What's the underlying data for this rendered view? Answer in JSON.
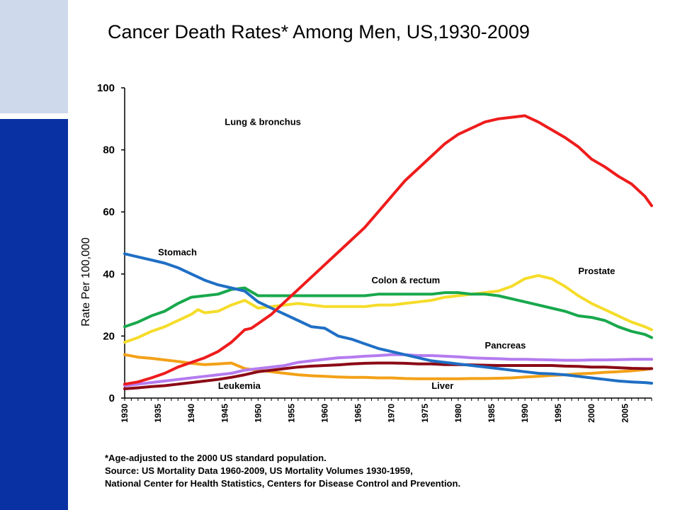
{
  "title": "Cancer Death Rates* Among Men, US,1930-2009",
  "footnote": {
    "line1": "*Age-adjusted to the 2000 US standard population.",
    "line2": "Source:  US Mortality Data 1960-2009, US Mortality Volumes 1930-1959,",
    "line3": "National Center for Health Statistics, Centers for Disease Control and Prevention."
  },
  "chart_data": {
    "type": "line",
    "title": "Cancer Death Rates* Among Men, US,1930-2009",
    "xlabel": "",
    "ylabel": "Rate Per 100,000",
    "xlim": [
      1930,
      2009
    ],
    "ylim": [
      0,
      100
    ],
    "yticks": [
      0,
      20,
      40,
      60,
      80,
      100
    ],
    "xticks": [
      1930,
      1935,
      1940,
      1945,
      1950,
      1955,
      1960,
      1965,
      1970,
      1975,
      1980,
      1985,
      1990,
      1995,
      2000,
      2005
    ],
    "grid": false,
    "legend": "labels placed next to lines",
    "series": [
      {
        "name": "Lung & bronchus",
        "color": "#ee1c1c",
        "label_at": [
          1945,
          88
        ],
        "points": [
          [
            1930,
            4.5
          ],
          [
            1932,
            5.2
          ],
          [
            1934,
            6.5
          ],
          [
            1936,
            8
          ],
          [
            1938,
            10
          ],
          [
            1940,
            11.5
          ],
          [
            1942,
            13
          ],
          [
            1944,
            15
          ],
          [
            1946,
            18
          ],
          [
            1948,
            22
          ],
          [
            1949,
            22.5
          ],
          [
            1950,
            24
          ],
          [
            1952,
            27
          ],
          [
            1954,
            31
          ],
          [
            1956,
            35
          ],
          [
            1958,
            39
          ],
          [
            1960,
            43
          ],
          [
            1962,
            47
          ],
          [
            1964,
            51
          ],
          [
            1966,
            55
          ],
          [
            1968,
            60
          ],
          [
            1970,
            65
          ],
          [
            1972,
            70
          ],
          [
            1974,
            74
          ],
          [
            1976,
            78
          ],
          [
            1978,
            82
          ],
          [
            1980,
            85
          ],
          [
            1982,
            87
          ],
          [
            1984,
            89
          ],
          [
            1986,
            90
          ],
          [
            1988,
            90.5
          ],
          [
            1990,
            91
          ],
          [
            1992,
            89
          ],
          [
            1994,
            86.5
          ],
          [
            1996,
            84
          ],
          [
            1998,
            81
          ],
          [
            2000,
            77
          ],
          [
            2002,
            74.5
          ],
          [
            2004,
            71.5
          ],
          [
            2006,
            69
          ],
          [
            2008,
            65
          ],
          [
            2009,
            62
          ]
        ]
      },
      {
        "name": "Stomach",
        "color": "#1f6fc5",
        "label_at": [
          1935,
          46
        ],
        "points": [
          [
            1930,
            46.5
          ],
          [
            1932,
            45.5
          ],
          [
            1934,
            44.5
          ],
          [
            1936,
            43.5
          ],
          [
            1938,
            42
          ],
          [
            1940,
            40
          ],
          [
            1942,
            38
          ],
          [
            1944,
            36.5
          ],
          [
            1946,
            35.5
          ],
          [
            1948,
            34.5
          ],
          [
            1950,
            31
          ],
          [
            1952,
            29
          ],
          [
            1954,
            27
          ],
          [
            1956,
            25
          ],
          [
            1958,
            23
          ],
          [
            1960,
            22.5
          ],
          [
            1962,
            20
          ],
          [
            1964,
            19
          ],
          [
            1966,
            17.5
          ],
          [
            1968,
            16
          ],
          [
            1970,
            15
          ],
          [
            1972,
            14
          ],
          [
            1974,
            13
          ],
          [
            1976,
            12
          ],
          [
            1978,
            11.5
          ],
          [
            1980,
            11
          ],
          [
            1982,
            10.5
          ],
          [
            1984,
            10
          ],
          [
            1986,
            9.5
          ],
          [
            1988,
            9
          ],
          [
            1990,
            8.5
          ],
          [
            1992,
            8
          ],
          [
            1994,
            7.8
          ],
          [
            1996,
            7.5
          ],
          [
            1998,
            7
          ],
          [
            2000,
            6.5
          ],
          [
            2002,
            6
          ],
          [
            2004,
            5.5
          ],
          [
            2006,
            5.2
          ],
          [
            2008,
            5
          ],
          [
            2009,
            4.8
          ]
        ]
      },
      {
        "name": "Colon & rectum",
        "color": "#18a84c",
        "label_at": [
          1967,
          37
        ],
        "points": [
          [
            1930,
            23
          ],
          [
            1932,
            24.5
          ],
          [
            1934,
            26.5
          ],
          [
            1936,
            28
          ],
          [
            1938,
            30.5
          ],
          [
            1940,
            32.5
          ],
          [
            1942,
            33
          ],
          [
            1944,
            33.5
          ],
          [
            1946,
            35
          ],
          [
            1948,
            35.5
          ],
          [
            1950,
            33
          ],
          [
            1952,
            33
          ],
          [
            1954,
            33
          ],
          [
            1956,
            33
          ],
          [
            1958,
            33
          ],
          [
            1960,
            33
          ],
          [
            1962,
            33
          ],
          [
            1964,
            33
          ],
          [
            1966,
            33
          ],
          [
            1968,
            33.5
          ],
          [
            1970,
            33.5
          ],
          [
            1972,
            33.5
          ],
          [
            1974,
            33.5
          ],
          [
            1976,
            33.5
          ],
          [
            1978,
            34
          ],
          [
            1980,
            34
          ],
          [
            1982,
            33.5
          ],
          [
            1984,
            33.5
          ],
          [
            1986,
            33
          ],
          [
            1988,
            32
          ],
          [
            1990,
            31
          ],
          [
            1992,
            30
          ],
          [
            1994,
            29
          ],
          [
            1996,
            28
          ],
          [
            1998,
            26.5
          ],
          [
            2000,
            26
          ],
          [
            2002,
            25
          ],
          [
            2004,
            23
          ],
          [
            2006,
            21.5
          ],
          [
            2008,
            20.5
          ],
          [
            2009,
            19.5
          ]
        ]
      },
      {
        "name": "Prostate",
        "color": "#f5dc2a",
        "label_at": [
          1998,
          40
        ],
        "points": [
          [
            1930,
            18
          ],
          [
            1932,
            19.5
          ],
          [
            1934,
            21.5
          ],
          [
            1936,
            23
          ],
          [
            1938,
            25
          ],
          [
            1940,
            27
          ],
          [
            1941,
            28.5
          ],
          [
            1942,
            27.5
          ],
          [
            1944,
            28
          ],
          [
            1946,
            30
          ],
          [
            1948,
            31.5
          ],
          [
            1950,
            29
          ],
          [
            1952,
            29.5
          ],
          [
            1954,
            30
          ],
          [
            1956,
            30.5
          ],
          [
            1958,
            30
          ],
          [
            1960,
            29.5
          ],
          [
            1962,
            29.5
          ],
          [
            1964,
            29.5
          ],
          [
            1966,
            29.5
          ],
          [
            1968,
            30
          ],
          [
            1970,
            30
          ],
          [
            1972,
            30.5
          ],
          [
            1974,
            31
          ],
          [
            1976,
            31.5
          ],
          [
            1978,
            32.5
          ],
          [
            1980,
            33
          ],
          [
            1982,
            33.5
          ],
          [
            1984,
            34
          ],
          [
            1986,
            34.5
          ],
          [
            1988,
            36
          ],
          [
            1990,
            38.5
          ],
          [
            1992,
            39.5
          ],
          [
            1994,
            38.5
          ],
          [
            1996,
            36
          ],
          [
            1998,
            33
          ],
          [
            2000,
            30.5
          ],
          [
            2002,
            28.5
          ],
          [
            2004,
            26.5
          ],
          [
            2006,
            24.5
          ],
          [
            2008,
            23
          ],
          [
            2009,
            22
          ]
        ]
      },
      {
        "name": "Pancreas",
        "color": "#b57bf0",
        "label_at": [
          1984,
          16
        ],
        "points": [
          [
            1930,
            4
          ],
          [
            1932,
            4.5
          ],
          [
            1934,
            5
          ],
          [
            1936,
            5.5
          ],
          [
            1938,
            6
          ],
          [
            1940,
            6.5
          ],
          [
            1942,
            7
          ],
          [
            1944,
            7.5
          ],
          [
            1946,
            8
          ],
          [
            1948,
            9
          ],
          [
            1950,
            9.5
          ],
          [
            1952,
            10
          ],
          [
            1954,
            10.5
          ],
          [
            1956,
            11.5
          ],
          [
            1958,
            12
          ],
          [
            1960,
            12.5
          ],
          [
            1962,
            13
          ],
          [
            1964,
            13.2
          ],
          [
            1966,
            13.5
          ],
          [
            1968,
            13.7
          ],
          [
            1970,
            14
          ],
          [
            1972,
            14
          ],
          [
            1974,
            13.7
          ],
          [
            1976,
            13.7
          ],
          [
            1978,
            13.5
          ],
          [
            1980,
            13.3
          ],
          [
            1982,
            13
          ],
          [
            1984,
            12.8
          ],
          [
            1986,
            12.7
          ],
          [
            1988,
            12.5
          ],
          [
            1990,
            12.5
          ],
          [
            1992,
            12.4
          ],
          [
            1994,
            12.3
          ],
          [
            1996,
            12.2
          ],
          [
            1998,
            12.2
          ],
          [
            2000,
            12.3
          ],
          [
            2002,
            12.3
          ],
          [
            2004,
            12.4
          ],
          [
            2006,
            12.5
          ],
          [
            2008,
            12.5
          ],
          [
            2009,
            12.5
          ]
        ]
      },
      {
        "name": "Leukemia",
        "color": "#8b0a16",
        "label_at": [
          1944,
          3
        ],
        "points": [
          [
            1930,
            3
          ],
          [
            1932,
            3.3
          ],
          [
            1934,
            3.7
          ],
          [
            1936,
            4
          ],
          [
            1938,
            4.5
          ],
          [
            1940,
            5
          ],
          [
            1942,
            5.5
          ],
          [
            1944,
            6
          ],
          [
            1946,
            6.7
          ],
          [
            1948,
            7.5
          ],
          [
            1950,
            8.5
          ],
          [
            1952,
            9
          ],
          [
            1954,
            9.5
          ],
          [
            1956,
            10
          ],
          [
            1958,
            10.3
          ],
          [
            1960,
            10.5
          ],
          [
            1962,
            10.7
          ],
          [
            1964,
            11
          ],
          [
            1966,
            11.2
          ],
          [
            1968,
            11.3
          ],
          [
            1970,
            11.3
          ],
          [
            1972,
            11.2
          ],
          [
            1974,
            11
          ],
          [
            1976,
            11
          ],
          [
            1978,
            10.8
          ],
          [
            1980,
            10.8
          ],
          [
            1982,
            10.7
          ],
          [
            1984,
            10.6
          ],
          [
            1986,
            10.5
          ],
          [
            1988,
            10.5
          ],
          [
            1990,
            10.5
          ],
          [
            1992,
            10.5
          ],
          [
            1994,
            10.5
          ],
          [
            1996,
            10.3
          ],
          [
            1998,
            10.2
          ],
          [
            2000,
            10
          ],
          [
            2002,
            10
          ],
          [
            2004,
            9.8
          ],
          [
            2006,
            9.6
          ],
          [
            2008,
            9.5
          ],
          [
            2009,
            9.5
          ]
        ]
      },
      {
        "name": "Liver",
        "color": "#f3a117",
        "label_at": [
          1976,
          3
        ],
        "points": [
          [
            1930,
            14
          ],
          [
            1932,
            13.2
          ],
          [
            1934,
            12.8
          ],
          [
            1936,
            12.3
          ],
          [
            1938,
            11.8
          ],
          [
            1940,
            11.2
          ],
          [
            1942,
            10.8
          ],
          [
            1944,
            11
          ],
          [
            1946,
            11.3
          ],
          [
            1948,
            9.5
          ],
          [
            1950,
            9
          ],
          [
            1952,
            8.5
          ],
          [
            1954,
            8
          ],
          [
            1956,
            7.5
          ],
          [
            1958,
            7.2
          ],
          [
            1960,
            7
          ],
          [
            1962,
            6.8
          ],
          [
            1964,
            6.7
          ],
          [
            1966,
            6.7
          ],
          [
            1968,
            6.5
          ],
          [
            1970,
            6.5
          ],
          [
            1972,
            6.3
          ],
          [
            1974,
            6.2
          ],
          [
            1976,
            6.2
          ],
          [
            1978,
            6.2
          ],
          [
            1980,
            6.2
          ],
          [
            1982,
            6.3
          ],
          [
            1984,
            6.3
          ],
          [
            1986,
            6.4
          ],
          [
            1988,
            6.5
          ],
          [
            1990,
            6.8
          ],
          [
            1992,
            7
          ],
          [
            1994,
            7.3
          ],
          [
            1996,
            7.5
          ],
          [
            1998,
            7.8
          ],
          [
            2000,
            8
          ],
          [
            2002,
            8.3
          ],
          [
            2004,
            8.5
          ],
          [
            2006,
            8.8
          ],
          [
            2008,
            9.2
          ],
          [
            2009,
            9.5
          ]
        ]
      }
    ]
  }
}
